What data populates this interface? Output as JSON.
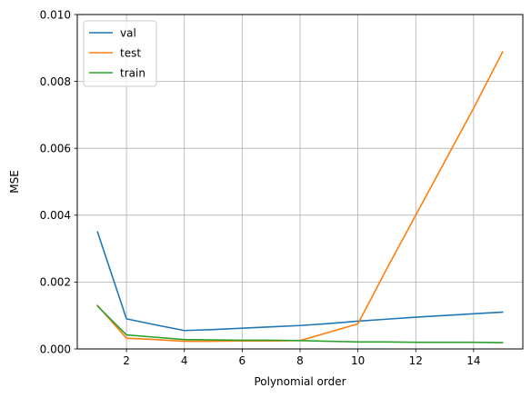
{
  "chart_data": {
    "type": "line",
    "xlabel": "Polynomial order",
    "ylabel": "MSE",
    "xlim": [
      0.3,
      15.7
    ],
    "ylim": [
      0,
      0.01
    ],
    "x_ticks": [
      2,
      4,
      6,
      8,
      10,
      12,
      14
    ],
    "y_ticks": [
      0.0,
      0.002,
      0.004,
      0.006,
      0.008,
      0.01
    ],
    "x_tick_labels": [
      "2",
      "4",
      "6",
      "8",
      "10",
      "12",
      "14"
    ],
    "y_tick_labels": [
      "0.000",
      "0.002",
      "0.004",
      "0.006",
      "0.008",
      "0.010"
    ],
    "grid": true,
    "legend_position": "top-left",
    "series": [
      {
        "name": "val",
        "color": "#1f77b4",
        "x": [
          1,
          2,
          3,
          4,
          5,
          6,
          7,
          8,
          9,
          10,
          11,
          12,
          13,
          14,
          15
        ],
        "y": [
          0.0035,
          0.0009,
          0.00072,
          0.00055,
          0.00058,
          0.00062,
          0.00066,
          0.0007,
          0.00076,
          0.00083,
          0.00089,
          0.00095,
          0.001,
          0.00105,
          0.0011
        ]
      },
      {
        "name": "test",
        "color": "#ff7f0e",
        "x": [
          1,
          2,
          3,
          4,
          5,
          6,
          7,
          8,
          9,
          10,
          11,
          12,
          13,
          14,
          15
        ],
        "y": [
          0.0013,
          0.00032,
          0.00028,
          0.00023,
          0.00023,
          0.00024,
          0.00024,
          0.00025,
          0.0005,
          0.00075,
          0.0024,
          0.004,
          0.0056,
          0.0072,
          0.00888
        ]
      },
      {
        "name": "train",
        "color": "#2ca02c",
        "x": [
          1,
          2,
          3,
          4,
          5,
          6,
          7,
          8,
          9,
          10,
          11,
          12,
          13,
          14,
          15
        ],
        "y": [
          0.00128,
          0.00042,
          0.00035,
          0.00028,
          0.00027,
          0.00026,
          0.00026,
          0.00025,
          0.00023,
          0.00021,
          0.00021,
          0.0002,
          0.0002,
          0.0002,
          0.00019
        ]
      }
    ]
  }
}
